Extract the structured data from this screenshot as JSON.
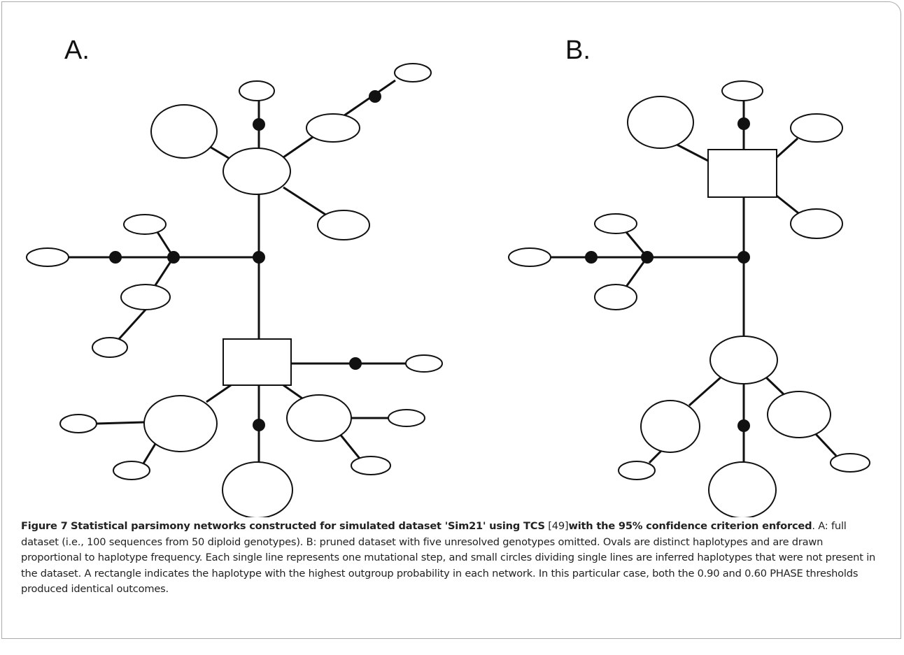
{
  "panels": [
    {
      "label": "A."
    },
    {
      "label": "B."
    }
  ],
  "caption": {
    "figure_label": "Figure 7",
    "title": "Statistical parsimony networks constructed for simulated dataset 'Sim21' using TCS",
    "citation": "[49]",
    "title_cont": "with the 95% confidence criterion enforced",
    "body": ". A: full dataset (i.e., 100 sequences from 50 diploid genotypes). B: pruned dataset with five unresolved genotypes omitted. Ovals are distinct haplotypes and are drawn proportional to haplotype frequency. Each single line represents one mutational step, and small circles dividing single lines are inferred haplotypes that were not present in the dataset. A rectangle indicates the haplotype with the highest outgroup probability in each network. In this particular case, both the 0.90 and 0.60 PHASE thresholds produced identical outcomes."
  }
}
